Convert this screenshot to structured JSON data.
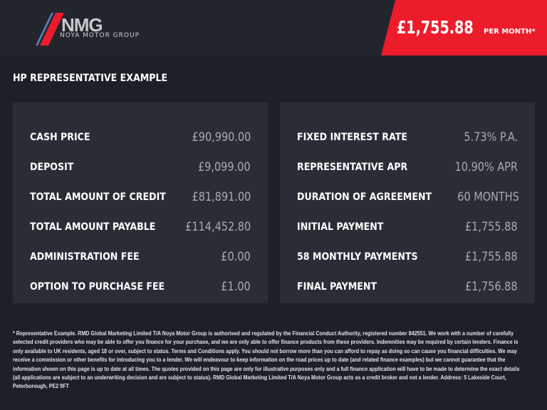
{
  "header": {
    "logo_text": "NMG",
    "logo_subtext": "NOYA MOTOR GROUP",
    "price": "£1,755.88",
    "price_suffix": "PER MONTH*",
    "accent_color": "#ec1c2b"
  },
  "section_title": "HP REPRESENTATIVE EXAMPLE",
  "left_panel": [
    {
      "label": "CASH PRICE",
      "value": "£90,990.00"
    },
    {
      "label": "DEPOSIT",
      "value": "£9,099.00"
    },
    {
      "label": "TOTAL AMOUNT OF CREDIT",
      "value": "£81,891.00"
    },
    {
      "label": "TOTAL AMOUNT PAYABLE",
      "value": "£114,452.80"
    },
    {
      "label": "ADMINISTRATION FEE",
      "value": "£0.00"
    },
    {
      "label": "OPTION TO PURCHASE FEE",
      "value": "£1.00"
    }
  ],
  "right_panel": [
    {
      "label": "FIXED INTEREST RATE",
      "value": "5.73% P.A."
    },
    {
      "label": "REPRESENTATIVE APR",
      "value": "10.90% APR"
    },
    {
      "label": "DURATION OF AGREEMENT",
      "value": "60 MONTHS"
    },
    {
      "label": "INITIAL PAYMENT",
      "value": "£1,755.88"
    },
    {
      "label": "58 MONTHLY PAYMENTS",
      "value": "£1,755.88"
    },
    {
      "label": "FINAL PAYMENT",
      "value": "£1,756.88"
    }
  ],
  "disclaimer": "* Representative Example. RMD Global Marketing Limited T/A Noya Motor Group is authorised and regulated by the Financial Conduct Authority, registered number 842551. We work with a number of carefully selected credit providers who may be able to offer you finance for your purchase, and we are only able to offer finance products from these providers. Indemnities may be required by certain lenders. Finance is only available to UK residents, aged 18 or over, subject to status. Terms and Conditions apply. You should not borrow more than you can afford to repay as doing so can cause you financial difficulties. We may receive a commission or other benefits for introducing you to a lender. We will endeavour to keep information on the road prices up to date (and related finance examples) but we cannot guarantee that the information shown on this page is up to date at all times. The quotes provided on this page are only for illustrative purposes only and a full finance application will have to be made to determine the exact details (all applications are subject to an underwriting decision and are subject to status). RMD Global Marketing Limited T/A Noya Motor Group acts as a credit broker and not a lender. Address: 5 Lakeside Court, Peterborough, PE2 9FT"
}
